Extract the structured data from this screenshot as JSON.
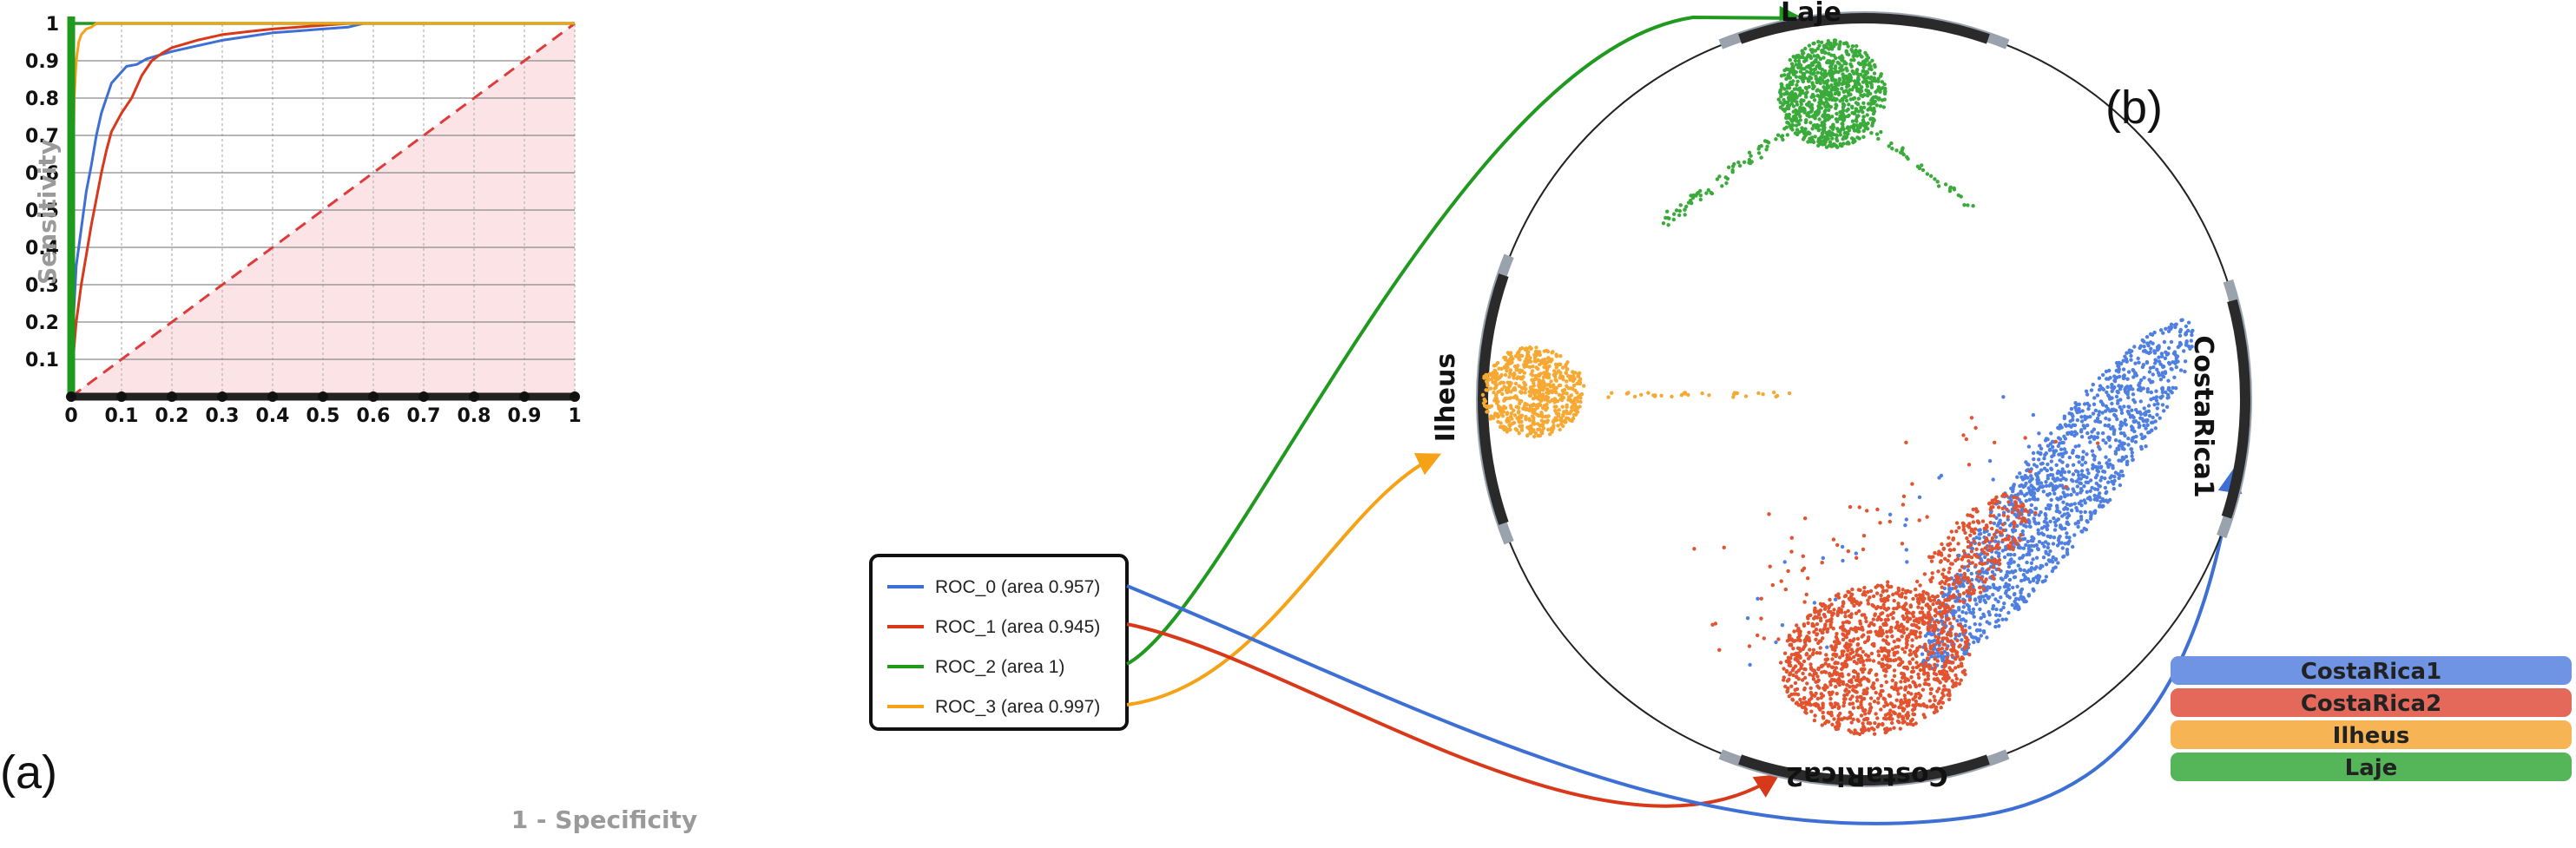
{
  "panel_labels": {
    "a": "(a)",
    "b": "(b)"
  },
  "chart_data": [
    {
      "type": "line",
      "xlabel": "1 - Specificity",
      "ylabel": "Sensitivity",
      "xlim": [
        0,
        1
      ],
      "ylim": [
        0,
        1
      ],
      "x_ticks": [
        "0",
        "0.1",
        "0.2",
        "0.3",
        "0.4",
        "0.5",
        "0.6",
        "0.7",
        "0.8",
        "0.9",
        "1"
      ],
      "y_ticks": [
        "0.1",
        "0.2",
        "0.3",
        "0.4",
        "0.5",
        "0.6",
        "0.7",
        "0.8",
        "0.9",
        "1"
      ],
      "grid": true,
      "legend_position": "bottom-right",
      "shaded_region": "below diagonal",
      "series": [
        {
          "name": "ROC_0 (area 0.957)",
          "color": "#3d6fd4",
          "points": [
            [
              0,
              0
            ],
            [
              0.002,
              0.1
            ],
            [
              0.005,
              0.22
            ],
            [
              0.01,
              0.35
            ],
            [
              0.02,
              0.45
            ],
            [
              0.03,
              0.55
            ],
            [
              0.04,
              0.62
            ],
            [
              0.05,
              0.7
            ],
            [
              0.06,
              0.76
            ],
            [
              0.07,
              0.8
            ],
            [
              0.08,
              0.84
            ],
            [
              0.1,
              0.87
            ],
            [
              0.11,
              0.885
            ],
            [
              0.13,
              0.89
            ],
            [
              0.15,
              0.905
            ],
            [
              0.2,
              0.925
            ],
            [
              0.25,
              0.94
            ],
            [
              0.3,
              0.955
            ],
            [
              0.35,
              0.965
            ],
            [
              0.4,
              0.975
            ],
            [
              0.45,
              0.98
            ],
            [
              0.5,
              0.985
            ],
            [
              0.55,
              0.99
            ],
            [
              0.58,
              1
            ],
            [
              1,
              1
            ]
          ]
        },
        {
          "name": "ROC_1 (area 0.945)",
          "color": "#d8391a",
          "points": [
            [
              0,
              0
            ],
            [
              0.002,
              0.05
            ],
            [
              0.005,
              0.12
            ],
            [
              0.01,
              0.2
            ],
            [
              0.02,
              0.3
            ],
            [
              0.03,
              0.38
            ],
            [
              0.04,
              0.46
            ],
            [
              0.05,
              0.53
            ],
            [
              0.06,
              0.6
            ],
            [
              0.07,
              0.66
            ],
            [
              0.08,
              0.71
            ],
            [
              0.1,
              0.76
            ],
            [
              0.12,
              0.8
            ],
            [
              0.14,
              0.86
            ],
            [
              0.16,
              0.9
            ],
            [
              0.18,
              0.92
            ],
            [
              0.2,
              0.935
            ],
            [
              0.25,
              0.955
            ],
            [
              0.3,
              0.97
            ],
            [
              0.35,
              0.978
            ],
            [
              0.4,
              0.985
            ],
            [
              0.45,
              0.99
            ],
            [
              0.5,
              0.995
            ],
            [
              0.55,
              1
            ],
            [
              1,
              1
            ]
          ]
        },
        {
          "name": "ROC_2 (area 1)",
          "color": "#1f9a1f",
          "points": [
            [
              0,
              0
            ],
            [
              0,
              1
            ],
            [
              1,
              1
            ]
          ]
        },
        {
          "name": "ROC_3 (area 0.997)",
          "color": "#f5a216",
          "points": [
            [
              0,
              0
            ],
            [
              0.003,
              0.5
            ],
            [
              0.006,
              0.8
            ],
            [
              0.01,
              0.9
            ],
            [
              0.015,
              0.95
            ],
            [
              0.02,
              0.97
            ],
            [
              0.03,
              0.985
            ],
            [
              0.04,
              0.99
            ],
            [
              0.05,
              1
            ],
            [
              1,
              1
            ]
          ]
        }
      ],
      "reference_line": {
        "points": [
          [
            0,
            0
          ],
          [
            1,
            1
          ]
        ],
        "color": "#e03b3b",
        "style": "dashed"
      }
    },
    {
      "type": "scatter",
      "clusters": [
        {
          "name": "Laje",
          "color": "#3aab3a",
          "arc_label": "Laje"
        },
        {
          "name": "CostaRica1",
          "color": "#4f7fe0",
          "arc_label": "CostaRica1"
        },
        {
          "name": "CostaRica2",
          "color": "#e2532f",
          "arc_label": "CostaRica2"
        },
        {
          "name": "Ilheus",
          "color": "#f7a832",
          "arc_label": "Ilheus"
        }
      ],
      "legend": [
        {
          "label": "CostaRica1",
          "color": "#6f94e4"
        },
        {
          "label": "CostaRica2",
          "color": "#e4695a"
        },
        {
          "label": "Ilheus",
          "color": "#f7b455"
        },
        {
          "label": "Laje",
          "color": "#55b559"
        }
      ]
    }
  ]
}
